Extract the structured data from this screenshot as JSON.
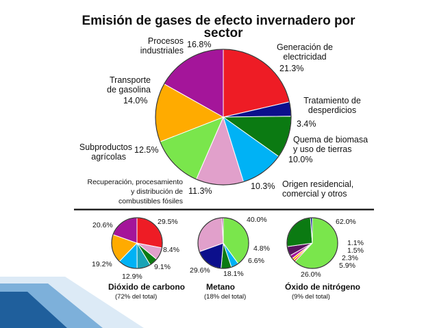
{
  "colors": {
    "red": "#ee1c25",
    "purple": "#a4159a",
    "orange": "#ffab00",
    "lime": "#7ae64c",
    "pink": "#e1a0cb",
    "cyan": "#00b2f5",
    "dgreen": "#0b7a12",
    "navy": "#0c0f8c",
    "darkpurple": "#5a1460",
    "yellow": "#f2e600",
    "teal": "#1aa3b5"
  },
  "chart_data": [
    {
      "type": "pie",
      "title": "Emisión de gases de efecto invernadero por sector",
      "slices": [
        {
          "label": "Generación de electricidad",
          "value": 21.3,
          "pct_label": "21.3%",
          "color": "red"
        },
        {
          "label": "Tratamiento de desperdicios",
          "value": 3.4,
          "pct_label": "3.4%",
          "color": "navy"
        },
        {
          "label": "Quema de biomasa y uso de tierras",
          "value": 10.0,
          "pct_label": "10.0%",
          "color": "dgreen"
        },
        {
          "label": "Origen residencial, comercial y otros",
          "value": 10.3,
          "pct_label": "10.3%",
          "color": "cyan"
        },
        {
          "label": "Recuperación, procesamiento y distribución de combustibles fósiles",
          "value": 11.3,
          "pct_label": "11.3%",
          "color": "pink"
        },
        {
          "label": "Subproductos agrícolas",
          "value": 12.5,
          "pct_label": "12.5%",
          "color": "lime"
        },
        {
          "label": "Transporte de gasolina",
          "value": 14.0,
          "pct_label": "14.0%",
          "color": "orange"
        },
        {
          "label": "Procesos industriales",
          "value": 16.8,
          "pct_label": "16.8%",
          "color": "purple"
        }
      ]
    },
    {
      "type": "pie",
      "name": "Dióxido de carbono",
      "share": "(72% del total)",
      "slices": [
        {
          "value": 29.5,
          "pct_label": "29.5%",
          "color": "red"
        },
        {
          "value": 8.4,
          "pct_label": "8.4%",
          "color": "pink"
        },
        {
          "value": 5.6,
          "pct_label": "",
          "color": "dgreen"
        },
        {
          "value": 9.1,
          "pct_label": "9.1%",
          "color": "teal"
        },
        {
          "value": 12.9,
          "pct_label": "12.9%",
          "color": "cyan"
        },
        {
          "value": 19.2,
          "pct_label": "19.2%",
          "color": "orange"
        },
        {
          "value": 20.6,
          "pct_label": "20.6%",
          "color": "purple"
        }
      ]
    },
    {
      "type": "pie",
      "name": "Metano",
      "share": "(18% del total)",
      "slices": [
        {
          "value": 40.0,
          "pct_label": "40.0%",
          "color": "lime"
        },
        {
          "value": 4.8,
          "pct_label": "4.8%",
          "color": "cyan"
        },
        {
          "value": 6.6,
          "pct_label": "6.6%",
          "color": "dgreen"
        },
        {
          "value": 18.1,
          "pct_label": "18.1%",
          "color": "navy"
        },
        {
          "value": 29.6,
          "pct_label": "29.6%",
          "color": "pink"
        },
        {
          "value": 0.9,
          "pct_label": "",
          "color": "purple"
        }
      ]
    },
    {
      "type": "pie",
      "name": "Óxido de nitrógeno",
      "share": "(9% del total)",
      "slices": [
        {
          "value": 62.0,
          "pct_label": "62.0%",
          "color": "lime"
        },
        {
          "value": 1.1,
          "pct_label": "1.1%",
          "color": "red"
        },
        {
          "value": 1.5,
          "pct_label": "1.5%",
          "color": "orange"
        },
        {
          "value": 2.3,
          "pct_label": "2.3%",
          "color": "purple"
        },
        {
          "value": 5.9,
          "pct_label": "5.9%",
          "color": "darkpurple"
        },
        {
          "value": 26.0,
          "pct_label": "26.0%",
          "color": "dgreen"
        },
        {
          "value": 1.2,
          "pct_label": "",
          "color": "navy"
        }
      ]
    }
  ]
}
